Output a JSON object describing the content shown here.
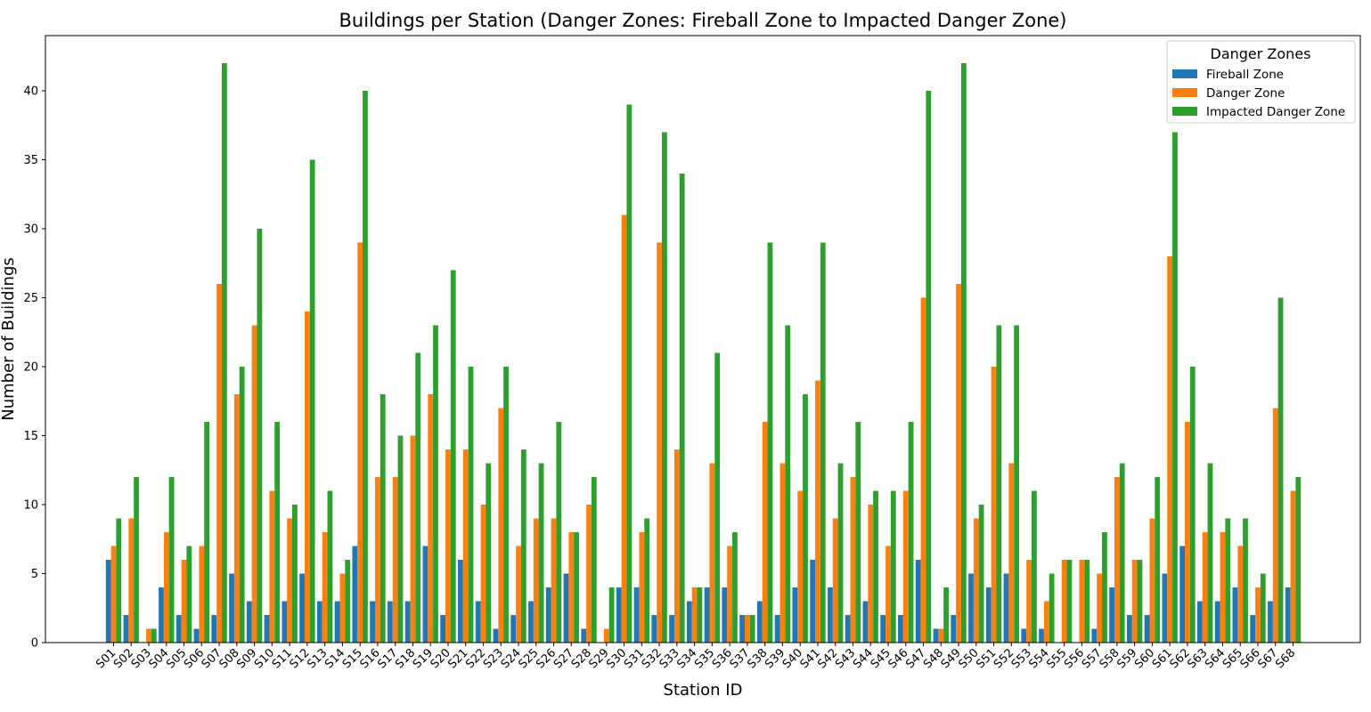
{
  "chart_data": {
    "type": "bar",
    "title": "Buildings per Station (Danger Zones: Fireball Zone to Impacted Danger Zone)",
    "xlabel": "Station ID",
    "ylabel": "Number of Buildings",
    "ylim": [
      0,
      44
    ],
    "yticks": [
      0,
      5,
      10,
      15,
      20,
      25,
      30,
      35,
      40
    ],
    "grid": false,
    "legend": {
      "title": "Danger Zones",
      "placement": "top-right"
    },
    "categories": [
      "S01",
      "S02",
      "S03",
      "S04",
      "S05",
      "S06",
      "S07",
      "S08",
      "S09",
      "S10",
      "S11",
      "S12",
      "S13",
      "S14",
      "S15",
      "S16",
      "S17",
      "S18",
      "S19",
      "S20",
      "S21",
      "S22",
      "S23",
      "S24",
      "S25",
      "S26",
      "S27",
      "S28",
      "S29",
      "S30",
      "S31",
      "S32",
      "S33",
      "S34",
      "S35",
      "S36",
      "S37",
      "S38",
      "S39",
      "S40",
      "S41",
      "S42",
      "S43",
      "S44",
      "S45",
      "S46",
      "S47",
      "S48",
      "S49",
      "S50",
      "S51",
      "S52",
      "S53",
      "S54",
      "S55",
      "S56",
      "S57",
      "S58",
      "S59",
      "S60",
      "S61",
      "S62",
      "S63",
      "S64",
      "S65",
      "S66",
      "S67",
      "S68"
    ],
    "series": [
      {
        "name": "Fireball Zone",
        "color": "#1f77b4",
        "values": [
          6,
          2,
          0,
          4,
          2,
          1,
          2,
          5,
          3,
          2,
          3,
          5,
          3,
          3,
          7,
          3,
          3,
          3,
          7,
          2,
          6,
          3,
          1,
          2,
          3,
          4,
          5,
          1,
          0,
          4,
          4,
          2,
          2,
          3,
          4,
          4,
          2,
          3,
          2,
          4,
          6,
          4,
          2,
          3,
          2,
          2,
          6,
          1,
          2,
          5,
          4,
          5,
          1,
          1,
          0,
          0,
          1,
          4,
          2,
          2,
          5,
          7,
          3,
          3,
          4,
          2,
          3,
          4
        ]
      },
      {
        "name": "Danger Zone",
        "color": "#ff7f0e",
        "values": [
          7,
          9,
          1,
          8,
          6,
          7,
          26,
          18,
          23,
          11,
          9,
          24,
          8,
          5,
          29,
          12,
          12,
          15,
          18,
          14,
          14,
          10,
          17,
          7,
          9,
          9,
          8,
          10,
          1,
          31,
          8,
          29,
          14,
          4,
          13,
          7,
          2,
          16,
          13,
          11,
          19,
          9,
          12,
          10,
          7,
          11,
          25,
          1,
          26,
          9,
          20,
          13,
          6,
          3,
          6,
          6,
          5,
          12,
          6,
          9,
          28,
          16,
          8,
          8,
          7,
          4,
          17,
          11
        ]
      },
      {
        "name": "Impacted Danger Zone",
        "color": "#2ca02c",
        "values": [
          9,
          12,
          1,
          12,
          7,
          16,
          42,
          20,
          30,
          16,
          10,
          35,
          11,
          6,
          40,
          18,
          15,
          21,
          23,
          27,
          20,
          13,
          20,
          14,
          13,
          16,
          8,
          12,
          4,
          39,
          9,
          37,
          34,
          4,
          21,
          8,
          2,
          29,
          23,
          18,
          29,
          13,
          16,
          11,
          11,
          16,
          40,
          4,
          42,
          10,
          23,
          23,
          11,
          5,
          6,
          6,
          8,
          13,
          6,
          12,
          37,
          20,
          13,
          9,
          9,
          5,
          25,
          12
        ]
      }
    ]
  }
}
